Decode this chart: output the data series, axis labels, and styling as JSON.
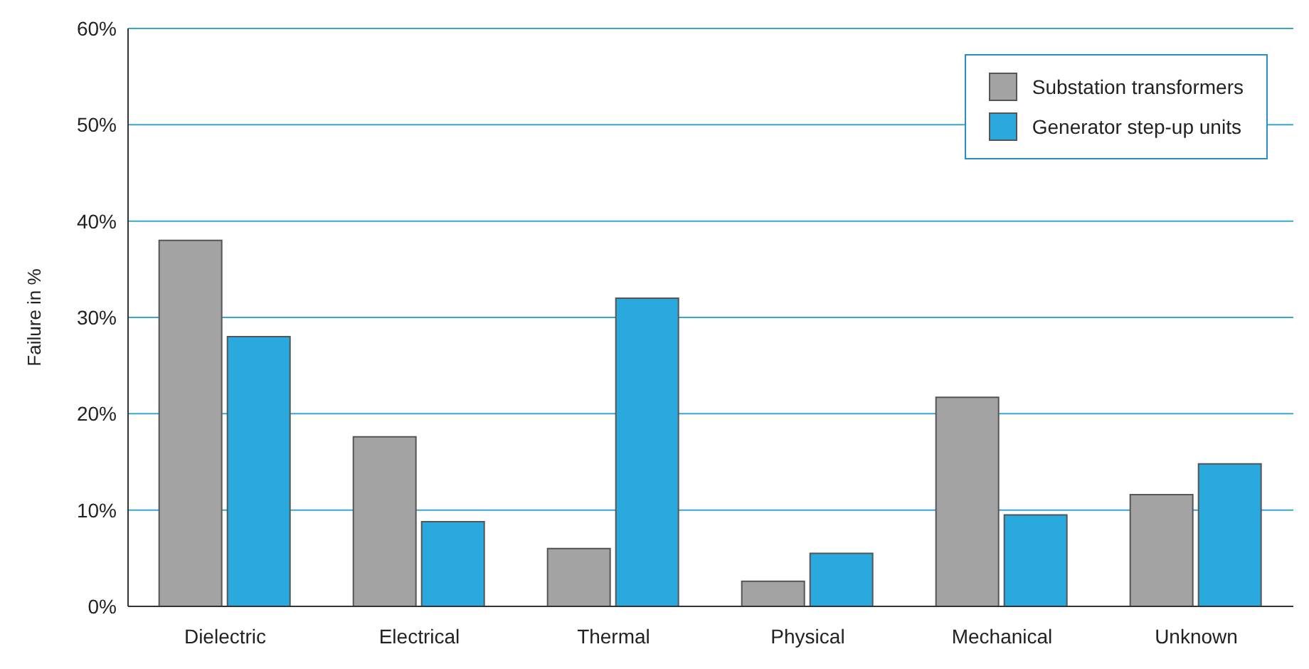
{
  "chart_data": {
    "type": "bar",
    "ylabel": "Failure in %",
    "categories": [
      "Dielectric",
      "Electrical",
      "Thermal",
      "Physical",
      "Mechanical",
      "Unknown"
    ],
    "series": [
      {
        "name": "Substation transformers",
        "color": "#a3a3a3",
        "values": [
          38,
          17.6,
          6,
          2.6,
          21.7,
          11.6
        ]
      },
      {
        "name": "Generator step-up units",
        "color": "#2aa9df",
        "values": [
          28,
          8.8,
          32,
          5.5,
          9.5,
          14.8
        ]
      }
    ],
    "ylim": [
      0,
      60
    ],
    "yticks": [
      {
        "value": 0,
        "label": "0%"
      },
      {
        "value": 10,
        "label": "10%"
      },
      {
        "value": 20,
        "label": "20%"
      },
      {
        "value": 30,
        "label": "30%"
      },
      {
        "value": 40,
        "label": "40%"
      },
      {
        "value": 50,
        "label": "50%"
      },
      {
        "value": 60,
        "label": "60%"
      }
    ],
    "grid": "y",
    "legend": "top right"
  }
}
